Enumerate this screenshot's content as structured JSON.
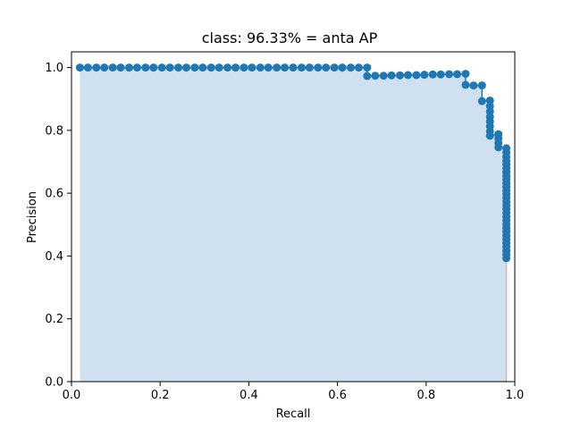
{
  "chart_data": {
    "type": "area",
    "title": "class: 96.33% = anta AP",
    "xlabel": "Recall",
    "ylabel": "Precision",
    "xlim": [
      0.0,
      1.0
    ],
    "ylim": [
      0.0,
      1.05
    ],
    "xticks": [
      "0.0",
      "0.2",
      "0.4",
      "0.6",
      "0.8",
      "1.0"
    ],
    "yticks": [
      "0.0",
      "0.2",
      "0.4",
      "0.6",
      "0.8",
      "1.0"
    ],
    "grid": false,
    "fill_color": "#cfe1f0",
    "marker_color": "#1f77b4",
    "line_color": "#1f77b4",
    "recall": [
      0.019,
      0.037,
      0.056,
      0.074,
      0.093,
      0.111,
      0.13,
      0.148,
      0.167,
      0.185,
      0.204,
      0.222,
      0.241,
      0.259,
      0.278,
      0.296,
      0.315,
      0.333,
      0.352,
      0.37,
      0.389,
      0.407,
      0.426,
      0.444,
      0.463,
      0.481,
      0.5,
      0.519,
      0.537,
      0.556,
      0.574,
      0.593,
      0.611,
      0.63,
      0.648,
      0.667,
      0.667,
      0.685,
      0.704,
      0.722,
      0.741,
      0.759,
      0.778,
      0.796,
      0.815,
      0.833,
      0.852,
      0.87,
      0.889,
      0.889,
      0.907,
      0.926,
      0.926,
      0.944,
      0.944,
      0.944,
      0.944,
      0.944,
      0.944,
      0.944,
      0.944,
      0.963,
      0.963,
      0.963,
      0.963,
      0.981,
      0.981,
      0.981,
      0.981,
      0.981,
      0.981,
      0.981,
      0.981,
      0.981,
      0.981,
      0.981,
      0.981,
      0.981,
      0.981,
      0.981,
      0.981,
      0.981,
      0.981,
      0.981,
      0.981,
      0.981,
      0.981,
      0.981,
      0.981,
      0.981,
      0.981,
      0.981,
      0.981,
      0.981,
      0.981
    ],
    "precision": [
      1.0,
      1.0,
      1.0,
      1.0,
      1.0,
      1.0,
      1.0,
      1.0,
      1.0,
      1.0,
      1.0,
      1.0,
      1.0,
      1.0,
      1.0,
      1.0,
      1.0,
      1.0,
      1.0,
      1.0,
      1.0,
      1.0,
      1.0,
      1.0,
      1.0,
      1.0,
      1.0,
      1.0,
      1.0,
      1.0,
      1.0,
      1.0,
      1.0,
      1.0,
      1.0,
      1.0,
      0.973,
      0.974,
      0.974,
      0.975,
      0.975,
      0.976,
      0.976,
      0.977,
      0.978,
      0.978,
      0.979,
      0.979,
      0.98,
      0.945,
      0.943,
      0.943,
      0.893,
      0.895,
      0.877,
      0.86,
      0.843,
      0.828,
      0.813,
      0.797,
      0.783,
      0.788,
      0.774,
      0.76,
      0.746,
      0.743,
      0.73,
      0.716,
      0.703,
      0.691,
      0.679,
      0.667,
      0.655,
      0.643,
      0.632,
      0.62,
      0.608,
      0.597,
      0.585,
      0.573,
      0.561,
      0.549,
      0.537,
      0.525,
      0.513,
      0.501,
      0.489,
      0.477,
      0.465,
      0.453,
      0.441,
      0.429,
      0.417,
      0.405,
      0.393,
      0.381,
      0.373
    ]
  }
}
